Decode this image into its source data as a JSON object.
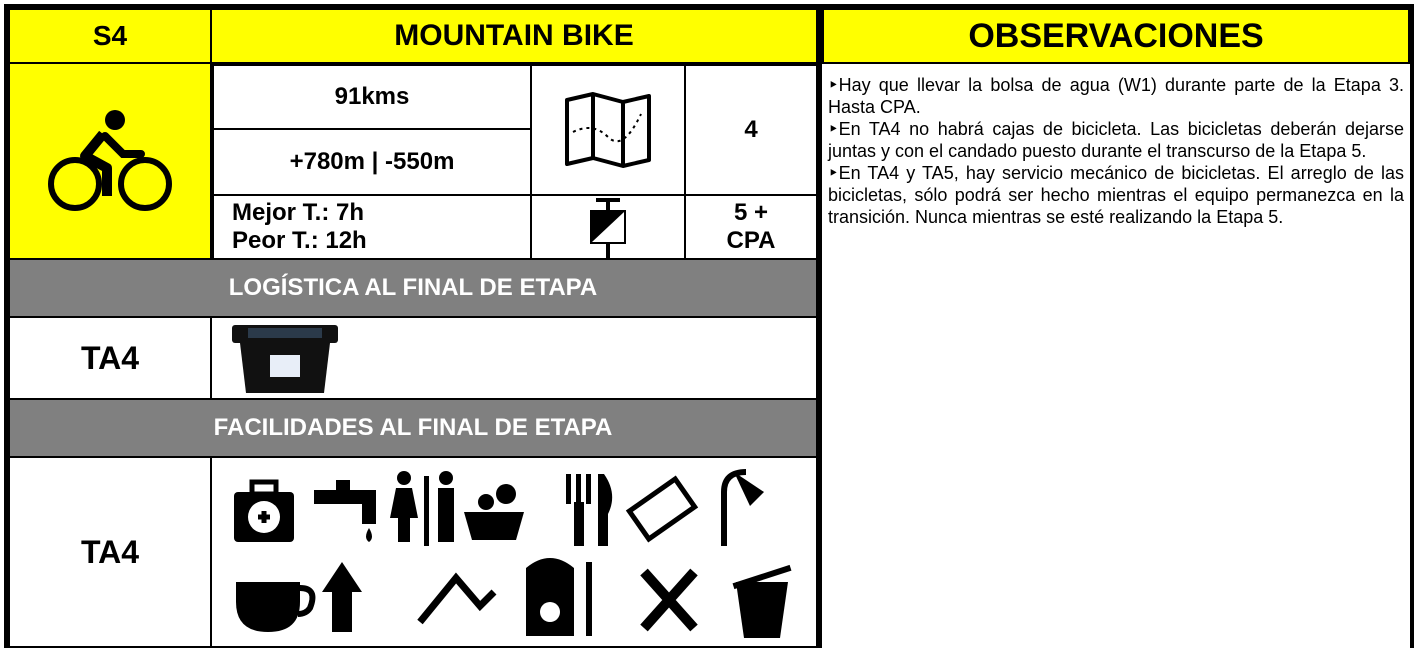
{
  "header": {
    "stage": "S4",
    "discipline": "MOUNTAIN BIKE",
    "observations_title": "OBSERVACIONES"
  },
  "stats": {
    "distance": "91kms",
    "elevation": "+780m | -550m",
    "best_time": "Mejor T.: 7h",
    "worst_time": "Peor T.: 12h",
    "maps": "4",
    "checkpoints": "5 + CPA"
  },
  "logistics": {
    "title": "LOGÍSTICA AL FINAL DE ETAPA",
    "location": "TA4"
  },
  "facilities": {
    "title": "FACILIDADES AL FINAL DE ETAPA",
    "location": "TA4"
  },
  "observations": [
    "‣Hay que llevar la bolsa de agua (W1) durante parte de la Etapa 3. Hasta CPA.",
    "‣En TA4 no habrá cajas de bicicleta. Las bicicletas deberán dejarse juntas y con el candado puesto durante el transcurso de la Etapa 5.",
    "‣En TA4 y TA5, hay servicio mecánico de bicicletas. El arreglo de las bicicletas, sólo podrá ser hecho mientras el equipo permanezca en la transición. Nunca mientras se esté realizando la Etapa 5."
  ]
}
